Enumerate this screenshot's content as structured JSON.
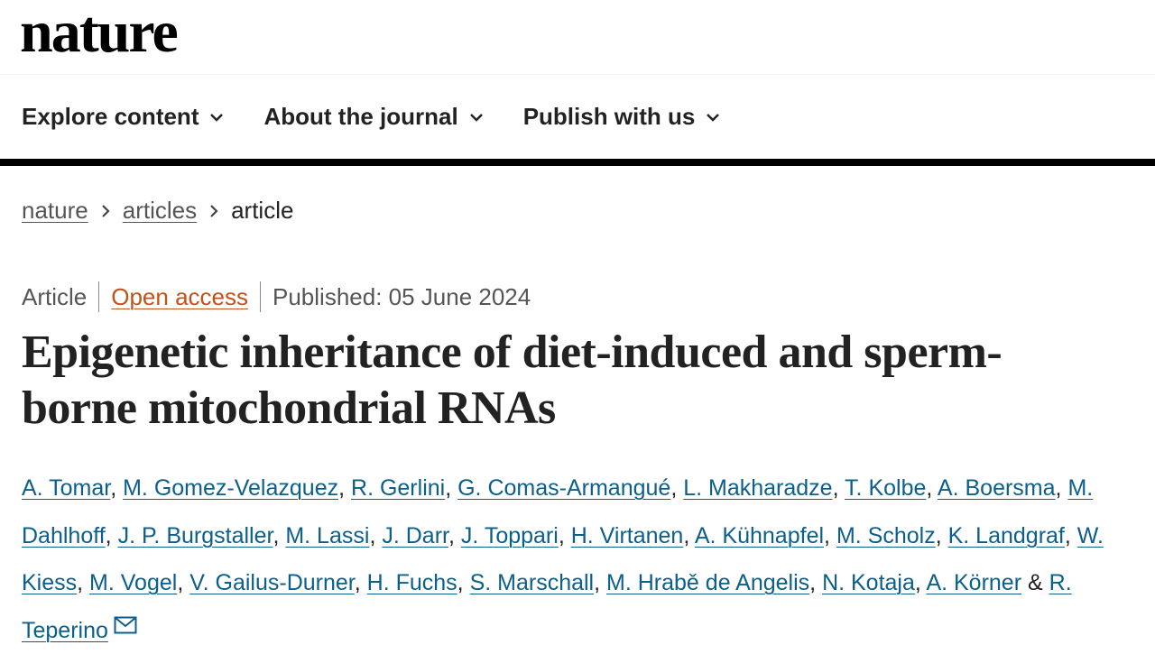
{
  "header": {
    "logo": "nature",
    "nav": [
      "Explore content",
      "About the journal",
      "Publish with us"
    ]
  },
  "breadcrumb": [
    "nature",
    "articles",
    "article"
  ],
  "meta": {
    "type": "Article",
    "access": "Open access",
    "published": "Published: 05 June 2024"
  },
  "title": "Epigenetic inheritance of diet-induced and sperm-borne mitochondrial RNAs",
  "authors": [
    "A. Tomar",
    "M. Gomez-Velazquez",
    "R. Gerlini",
    "G. Comas-Armangué",
    "L. Makharadze",
    "T. Kolbe",
    "A. Boersma",
    "M. Dahlhoff",
    "J. P. Burgstaller",
    "M. Lassi",
    "J. Darr",
    "J. Toppari",
    "H. Virtanen",
    "A. Kühnapfel",
    "M. Scholz",
    "K. Landgraf",
    "W. Kiess",
    "M. Vogel",
    "V. Gailus-Durner",
    "H. Fuchs",
    "S. Marschall",
    "M. Hrabě de Angelis",
    "N. Kotaja",
    "A. Körner",
    "R. Teperino"
  ],
  "author_separator": ",",
  "author_last_separator": "&"
}
